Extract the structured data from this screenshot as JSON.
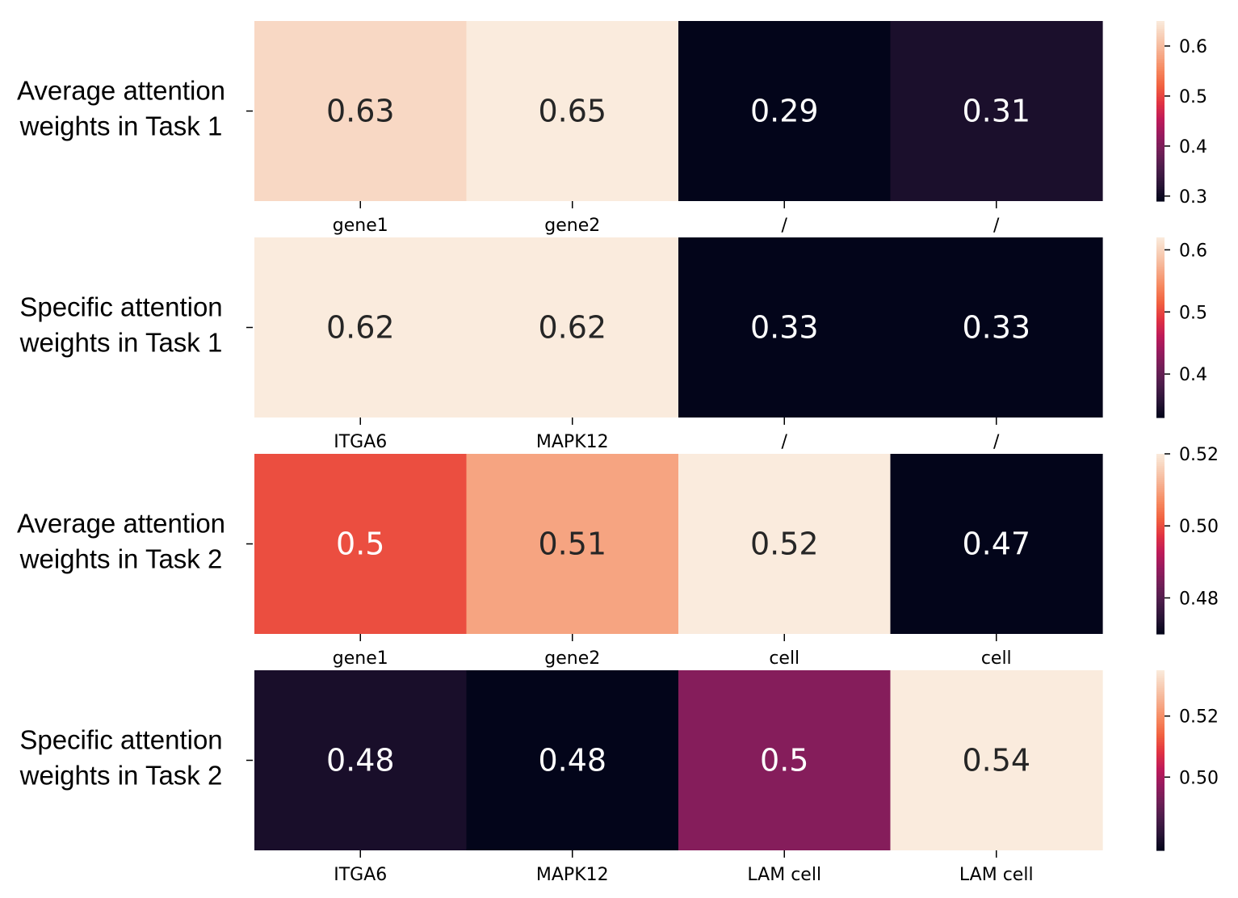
{
  "chart_data": [
    {
      "type": "heatmap",
      "row_label": [
        "Average attention",
        "weights in Task 1"
      ],
      "x": [
        "gene1",
        "gene2",
        "/",
        "/"
      ],
      "values": [
        0.63,
        0.65,
        0.29,
        0.31
      ],
      "cell_labels": [
        "0.63",
        "0.65",
        "0.29",
        "0.31"
      ],
      "colorbar": {
        "range": [
          0.29,
          0.65
        ],
        "ticks": [
          0.3,
          0.4,
          0.5,
          0.6
        ],
        "tick_labels": [
          "0.3",
          "0.4",
          "0.5",
          "0.6"
        ]
      }
    },
    {
      "type": "heatmap",
      "row_label": [
        "Specific attention",
        "weights in Task 1"
      ],
      "x": [
        "ITGA6",
        "MAPK12",
        "/",
        "/"
      ],
      "values": [
        0.62,
        0.62,
        0.33,
        0.33
      ],
      "cell_labels": [
        "0.62",
        "0.62",
        "0.33",
        "0.33"
      ],
      "colorbar": {
        "range": [
          0.33,
          0.62
        ],
        "ticks": [
          0.4,
          0.5,
          0.6
        ],
        "tick_labels": [
          "0.4",
          "0.5",
          "0.6"
        ]
      }
    },
    {
      "type": "heatmap",
      "row_label": [
        "Average attention",
        "weights in Task 2"
      ],
      "x": [
        "gene1",
        "gene2",
        "cell",
        "cell"
      ],
      "values": [
        0.5,
        0.51,
        0.52,
        0.47
      ],
      "cell_labels": [
        "0.5",
        "0.51",
        "0.52",
        "0.47"
      ],
      "colorbar": {
        "range": [
          0.47,
          0.52
        ],
        "ticks": [
          0.48,
          0.5,
          0.52
        ],
        "tick_labels": [
          "0.48",
          "0.50",
          "0.52"
        ]
      }
    },
    {
      "type": "heatmap",
      "row_label": [
        "Specific attention",
        "weights in Task 2"
      ],
      "x": [
        "ITGA6",
        "MAPK12",
        "LAM cell",
        "LAM cell"
      ],
      "values": [
        0.479,
        0.476,
        0.495,
        0.535
      ],
      "cell_labels": [
        "0.48",
        "0.48",
        "0.5",
        "0.54"
      ],
      "colorbar": {
        "range": [
          0.476,
          0.535
        ],
        "ticks": [
          0.5,
          0.52
        ],
        "tick_labels": [
          "0.50",
          "0.52"
        ]
      }
    }
  ],
  "colormap": [
    "#03051a",
    "#2a1537",
    "#4c1d4b",
    "#701f57",
    "#961b5e",
    "#bf1b59",
    "#e13342",
    "#f1603f",
    "#f6875e",
    "#f6ab8a",
    "#f7ccb4",
    "#faebdd"
  ]
}
